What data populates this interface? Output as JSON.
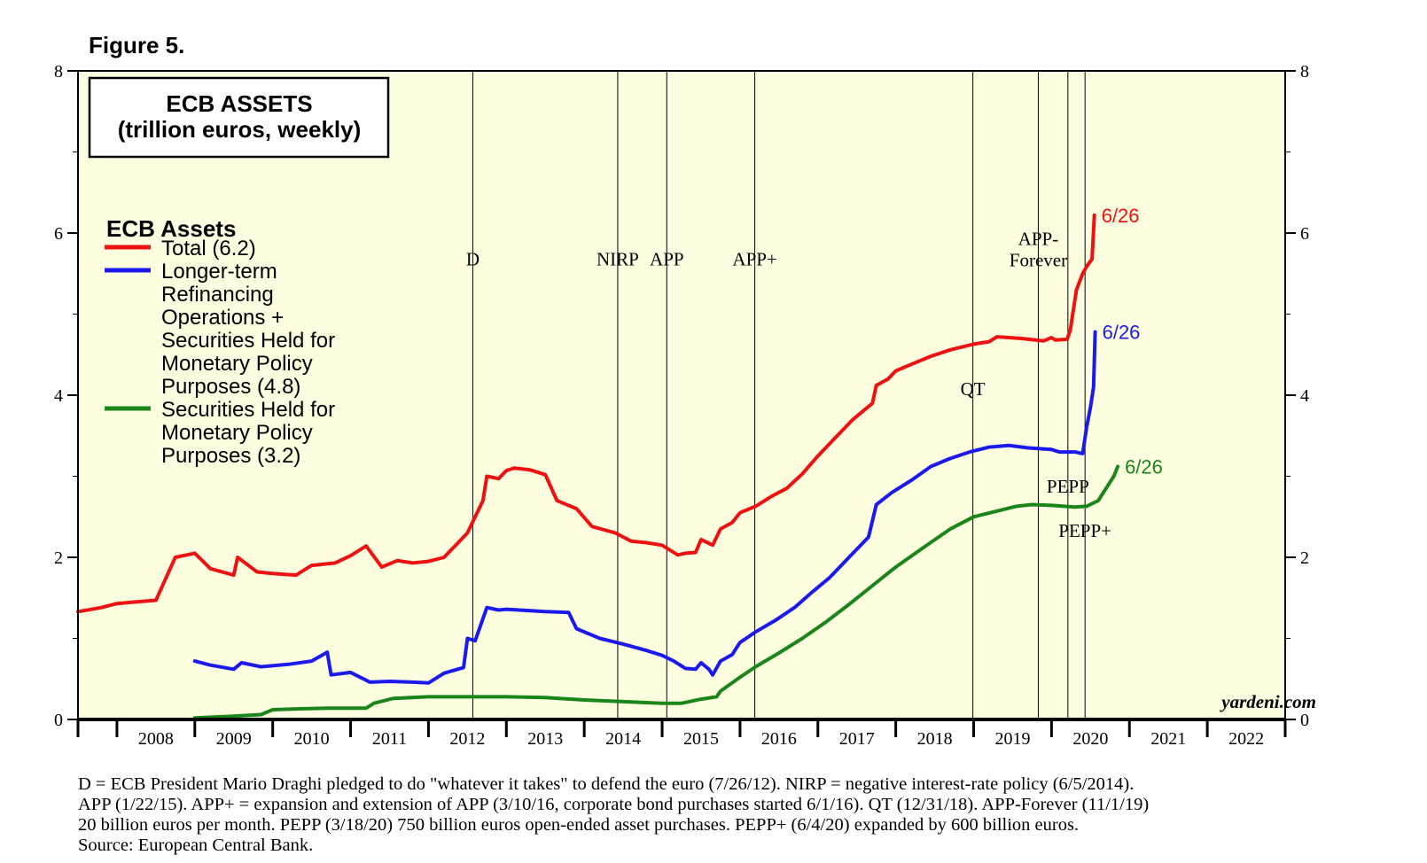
{
  "figure_title": "Figure 5.",
  "title_box": {
    "line1": "ECB ASSETS",
    "line2": "(trillion euros, weekly)"
  },
  "legend": {
    "heading": "ECB Assets",
    "items": [
      {
        "color": "#ee1111",
        "lines": [
          "Total (6.2)"
        ]
      },
      {
        "color": "#1a1aee",
        "lines": [
          "Longer-term",
          "Refinancing",
          "Operations +",
          "Securities Held for",
          "Monetary Policy",
          "Purposes (4.8)"
        ]
      },
      {
        "color": "#1a861a",
        "lines": [
          "Securities Held for",
          "Monetary Policy",
          "Purposes (3.2)"
        ]
      }
    ]
  },
  "watermark": "yardeni.com",
  "footnote": [
    "D = ECB President Mario Draghi pledged to do \"whatever it takes\" to defend the euro (7/26/12). NIRP = negative interest-rate policy (6/5/2014).",
    "APP (1/22/15). APP+ = expansion and extension of APP (3/10/16, corporate bond purchases started 6/1/16). QT (12/31/18). APP-Forever (11/1/19)",
    "20 billion euros per month. PEPP (3/18/20) 750 billion euros open-ended asset purchases. PEPP+ (6/4/20) expanded by 600 billion euros.",
    "Source: European Central Bank."
  ],
  "chart_data": {
    "type": "line",
    "xlim": [
      2007.5,
      2023.0
    ],
    "ylim": [
      0,
      8
    ],
    "y_ticks": [
      "0",
      "2",
      "4",
      "6",
      "8"
    ],
    "x_tick_labels": [
      "2008",
      "2009",
      "2010",
      "2011",
      "2012",
      "2013",
      "2014",
      "2015",
      "2016",
      "2017",
      "2018",
      "2019",
      "2020",
      "2021",
      "2022"
    ],
    "grid": false,
    "plot_background": "#fdfde0",
    "event_lines": [
      {
        "x": 2012.57,
        "label": "D",
        "label_y": 5.6
      },
      {
        "x": 2014.43,
        "label": "NIRP",
        "label_y": 5.6
      },
      {
        "x": 2015.06,
        "label": "APP",
        "label_y": 5.6
      },
      {
        "x": 2016.19,
        "label": "APP+",
        "label_y": 5.6
      },
      {
        "x": 2018.99,
        "label": "QT",
        "label_y": 4.0
      },
      {
        "x": 2019.83,
        "label": "APP-",
        "label2": "Forever",
        "label_y": 5.85
      },
      {
        "x": 2020.21,
        "label": "PEPP",
        "label_y": 2.8
      },
      {
        "x": 2020.43,
        "label": "PEPP+",
        "label_y": 2.25
      }
    ],
    "end_labels": [
      {
        "text": "6/26",
        "series": 0
      },
      {
        "text": "6/26",
        "series": 1
      },
      {
        "text": "6/26",
        "series": 2
      }
    ],
    "series": [
      {
        "name": "Total (6.2)",
        "color": "#ee1111",
        "points": [
          [
            2007.5,
            1.33
          ],
          [
            2007.8,
            1.38
          ],
          [
            2008.0,
            1.43
          ],
          [
            2008.25,
            1.45
          ],
          [
            2008.5,
            1.47
          ],
          [
            2008.75,
            2.0
          ],
          [
            2009.0,
            2.05
          ],
          [
            2009.2,
            1.86
          ],
          [
            2009.5,
            1.78
          ],
          [
            2009.55,
            2.0
          ],
          [
            2009.8,
            1.82
          ],
          [
            2010.0,
            1.8
          ],
          [
            2010.3,
            1.78
          ],
          [
            2010.5,
            1.9
          ],
          [
            2010.8,
            1.93
          ],
          [
            2011.0,
            2.02
          ],
          [
            2011.2,
            2.14
          ],
          [
            2011.4,
            1.88
          ],
          [
            2011.6,
            1.96
          ],
          [
            2011.8,
            1.93
          ],
          [
            2012.0,
            1.95
          ],
          [
            2012.2,
            2.0
          ],
          [
            2012.5,
            2.3
          ],
          [
            2012.7,
            2.7
          ],
          [
            2012.75,
            3.0
          ],
          [
            2012.9,
            2.97
          ],
          [
            2013.0,
            3.07
          ],
          [
            2013.1,
            3.1
          ],
          [
            2013.3,
            3.08
          ],
          [
            2013.5,
            3.02
          ],
          [
            2013.65,
            2.7
          ],
          [
            2013.9,
            2.6
          ],
          [
            2014.1,
            2.38
          ],
          [
            2014.4,
            2.3
          ],
          [
            2014.6,
            2.2
          ],
          [
            2014.8,
            2.18
          ],
          [
            2015.0,
            2.15
          ],
          [
            2015.2,
            2.03
          ],
          [
            2015.3,
            2.05
          ],
          [
            2015.43,
            2.06
          ],
          [
            2015.5,
            2.22
          ],
          [
            2015.65,
            2.15
          ],
          [
            2015.75,
            2.35
          ],
          [
            2015.9,
            2.43
          ],
          [
            2016.0,
            2.55
          ],
          [
            2016.2,
            2.63
          ],
          [
            2016.4,
            2.75
          ],
          [
            2016.6,
            2.85
          ],
          [
            2016.8,
            3.03
          ],
          [
            2017.0,
            3.25
          ],
          [
            2017.2,
            3.45
          ],
          [
            2017.45,
            3.7
          ],
          [
            2017.7,
            3.9
          ],
          [
            2017.75,
            4.12
          ],
          [
            2017.9,
            4.2
          ],
          [
            2018.0,
            4.3
          ],
          [
            2018.2,
            4.38
          ],
          [
            2018.45,
            4.48
          ],
          [
            2018.7,
            4.56
          ],
          [
            2019.0,
            4.63
          ],
          [
            2019.2,
            4.66
          ],
          [
            2019.3,
            4.72
          ],
          [
            2019.6,
            4.7
          ],
          [
            2019.9,
            4.67
          ],
          [
            2020.0,
            4.71
          ],
          [
            2020.05,
            4.68
          ],
          [
            2020.2,
            4.69
          ],
          [
            2020.24,
            4.8
          ],
          [
            2020.32,
            5.3
          ],
          [
            2020.4,
            5.5
          ],
          [
            2020.46,
            5.6
          ],
          [
            2020.52,
            5.68
          ],
          [
            2020.55,
            6.22
          ]
        ]
      },
      {
        "name": "Longer-term Refinancing Operations + Securities Held for Monetary Policy Purposes (4.8)",
        "color": "#1a1aee",
        "points": [
          [
            2009.0,
            0.72
          ],
          [
            2009.2,
            0.67
          ],
          [
            2009.5,
            0.62
          ],
          [
            2009.6,
            0.7
          ],
          [
            2009.85,
            0.65
          ],
          [
            2010.2,
            0.68
          ],
          [
            2010.5,
            0.72
          ],
          [
            2010.7,
            0.83
          ],
          [
            2010.75,
            0.55
          ],
          [
            2011.0,
            0.58
          ],
          [
            2011.25,
            0.46
          ],
          [
            2011.5,
            0.47
          ],
          [
            2011.8,
            0.46
          ],
          [
            2012.0,
            0.45
          ],
          [
            2012.2,
            0.57
          ],
          [
            2012.45,
            0.64
          ],
          [
            2012.5,
            1.0
          ],
          [
            2012.6,
            0.97
          ],
          [
            2012.75,
            1.38
          ],
          [
            2012.9,
            1.35
          ],
          [
            2013.0,
            1.36
          ],
          [
            2013.5,
            1.33
          ],
          [
            2013.8,
            1.32
          ],
          [
            2013.9,
            1.12
          ],
          [
            2014.2,
            1.0
          ],
          [
            2014.5,
            0.93
          ],
          [
            2014.8,
            0.85
          ],
          [
            2015.0,
            0.79
          ],
          [
            2015.15,
            0.72
          ],
          [
            2015.3,
            0.63
          ],
          [
            2015.43,
            0.62
          ],
          [
            2015.5,
            0.7
          ],
          [
            2015.6,
            0.62
          ],
          [
            2015.65,
            0.55
          ],
          [
            2015.75,
            0.72
          ],
          [
            2015.9,
            0.8
          ],
          [
            2016.0,
            0.95
          ],
          [
            2016.2,
            1.08
          ],
          [
            2016.45,
            1.22
          ],
          [
            2016.7,
            1.38
          ],
          [
            2016.9,
            1.55
          ],
          [
            2017.15,
            1.75
          ],
          [
            2017.4,
            2.0
          ],
          [
            2017.65,
            2.25
          ],
          [
            2017.75,
            2.65
          ],
          [
            2017.95,
            2.8
          ],
          [
            2018.2,
            2.95
          ],
          [
            2018.45,
            3.12
          ],
          [
            2018.7,
            3.22
          ],
          [
            2018.95,
            3.3
          ],
          [
            2019.2,
            3.36
          ],
          [
            2019.45,
            3.38
          ],
          [
            2019.7,
            3.35
          ],
          [
            2020.0,
            3.33
          ],
          [
            2020.1,
            3.3
          ],
          [
            2020.3,
            3.3
          ],
          [
            2020.4,
            3.28
          ],
          [
            2020.45,
            3.6
          ],
          [
            2020.5,
            3.85
          ],
          [
            2020.54,
            4.1
          ],
          [
            2020.56,
            4.78
          ]
        ]
      },
      {
        "name": "Securities Held for Monetary Policy Purposes (3.2)",
        "color": "#1a861a",
        "points": [
          [
            2009.0,
            0.02
          ],
          [
            2009.5,
            0.04
          ],
          [
            2009.85,
            0.06
          ],
          [
            2010.0,
            0.12
          ],
          [
            2010.3,
            0.13
          ],
          [
            2010.7,
            0.14
          ],
          [
            2011.0,
            0.14
          ],
          [
            2011.2,
            0.14
          ],
          [
            2011.3,
            0.2
          ],
          [
            2011.55,
            0.26
          ],
          [
            2012.0,
            0.28
          ],
          [
            2012.5,
            0.28
          ],
          [
            2013.0,
            0.28
          ],
          [
            2013.5,
            0.27
          ],
          [
            2014.0,
            0.24
          ],
          [
            2014.5,
            0.22
          ],
          [
            2015.0,
            0.2
          ],
          [
            2015.25,
            0.2
          ],
          [
            2015.5,
            0.25
          ],
          [
            2015.7,
            0.28
          ],
          [
            2015.75,
            0.35
          ],
          [
            2016.0,
            0.52
          ],
          [
            2016.2,
            0.65
          ],
          [
            2016.5,
            0.82
          ],
          [
            2016.8,
            1.0
          ],
          [
            2017.1,
            1.2
          ],
          [
            2017.4,
            1.42
          ],
          [
            2017.7,
            1.65
          ],
          [
            2018.0,
            1.88
          ],
          [
            2018.4,
            2.15
          ],
          [
            2018.7,
            2.35
          ],
          [
            2019.0,
            2.5
          ],
          [
            2019.3,
            2.57
          ],
          [
            2019.55,
            2.63
          ],
          [
            2019.75,
            2.65
          ],
          [
            2020.0,
            2.64
          ],
          [
            2020.3,
            2.62
          ],
          [
            2020.45,
            2.63
          ],
          [
            2020.6,
            2.7
          ],
          [
            2020.7,
            2.85
          ],
          [
            2020.8,
            3.0
          ],
          [
            2020.85,
            3.12
          ]
        ]
      }
    ]
  }
}
